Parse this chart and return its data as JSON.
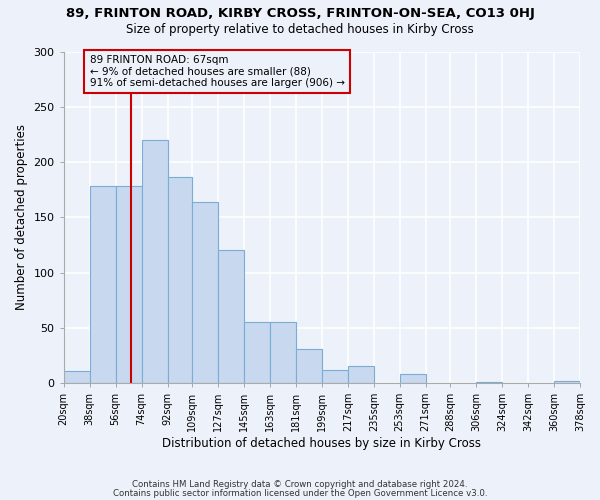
{
  "title": "89, FRINTON ROAD, KIRBY CROSS, FRINTON-ON-SEA, CO13 0HJ",
  "subtitle": "Size of property relative to detached houses in Kirby Cross",
  "xlabel": "Distribution of detached houses by size in Kirby Cross",
  "ylabel": "Number of detached properties",
  "bar_color": "#c8d9ef",
  "bar_edge_color": "#7aadd4",
  "bin_edges": [
    20,
    38,
    56,
    74,
    92,
    109,
    127,
    145,
    163,
    181,
    199,
    217,
    235,
    253,
    271,
    288,
    306,
    324,
    342,
    360,
    378
  ],
  "bin_labels": [
    "20sqm",
    "38sqm",
    "56sqm",
    "74sqm",
    "92sqm",
    "109sqm",
    "127sqm",
    "145sqm",
    "163sqm",
    "181sqm",
    "199sqm",
    "217sqm",
    "235sqm",
    "253sqm",
    "271sqm",
    "288sqm",
    "306sqm",
    "324sqm",
    "342sqm",
    "360sqm",
    "378sqm"
  ],
  "heights": [
    11,
    178,
    178,
    220,
    186,
    164,
    120,
    55,
    55,
    31,
    12,
    15,
    0,
    8,
    0,
    0,
    1,
    0,
    0,
    2
  ],
  "vline_x": 67,
  "vline_color": "#cc0000",
  "annotation_title": "89 FRINTON ROAD: 67sqm",
  "annotation_line1": "← 9% of detached houses are smaller (88)",
  "annotation_line2": "91% of semi-detached houses are larger (906) →",
  "annotation_box_color": "#cc0000",
  "ylim": [
    0,
    300
  ],
  "yticks": [
    0,
    50,
    100,
    150,
    200,
    250,
    300
  ],
  "footer1": "Contains HM Land Registry data © Crown copyright and database right 2024.",
  "footer2": "Contains public sector information licensed under the Open Government Licence v3.0.",
  "background_color": "#edf1f9",
  "grid_color": "#ffffff"
}
